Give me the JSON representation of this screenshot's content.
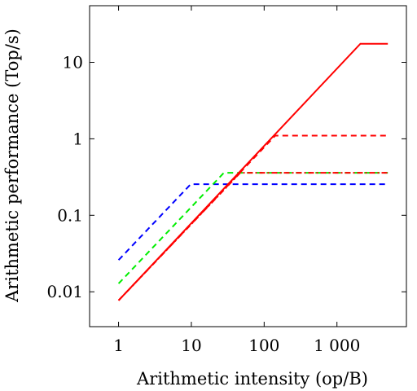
{
  "chart_data": {
    "type": "line",
    "title": "",
    "xlabel": "Arithmetic intensity (op/B)",
    "ylabel": "Arithmetic performance (Top/s)",
    "xscale": "log",
    "yscale": "log",
    "xlim": [
      0.4,
      9000
    ],
    "ylim": [
      0.0035,
      55
    ],
    "grid": false,
    "legend": "none",
    "x_ticks": [
      {
        "value": 1,
        "label": "1"
      },
      {
        "value": 10,
        "label": "10"
      },
      {
        "value": 100,
        "label": "100"
      },
      {
        "value": 1000,
        "label": "1 000"
      }
    ],
    "y_ticks": [
      {
        "value": 0.01,
        "label": "0.01"
      },
      {
        "value": 0.1,
        "label": "0.1"
      },
      {
        "value": 1,
        "label": "1"
      },
      {
        "value": 10,
        "label": "10"
      }
    ],
    "series": [
      {
        "color": "#0000ff",
        "style": "dashed",
        "points": [
          [
            1,
            0.026
          ],
          [
            9.8,
            0.255
          ],
          [
            5000,
            0.255
          ]
        ]
      },
      {
        "color": "#00ee00",
        "style": "dashed",
        "points": [
          [
            1,
            0.0128
          ],
          [
            28,
            0.36
          ],
          [
            5000,
            0.36
          ]
        ]
      },
      {
        "color": "#ff0000",
        "style": "dashed",
        "points": [
          [
            1,
            0.0077
          ],
          [
            142,
            1.1
          ],
          [
            5000,
            1.1
          ]
        ]
      },
      {
        "color": "#ff0000",
        "style": "dashdot",
        "points": [
          [
            1,
            0.0077
          ],
          [
            47,
            0.36
          ],
          [
            5000,
            0.36
          ]
        ]
      },
      {
        "color": "#ff0000",
        "style": "solid",
        "points": [
          [
            1,
            0.0077
          ],
          [
            2100,
            17.5
          ],
          [
            5000,
            17.5
          ]
        ]
      }
    ]
  }
}
